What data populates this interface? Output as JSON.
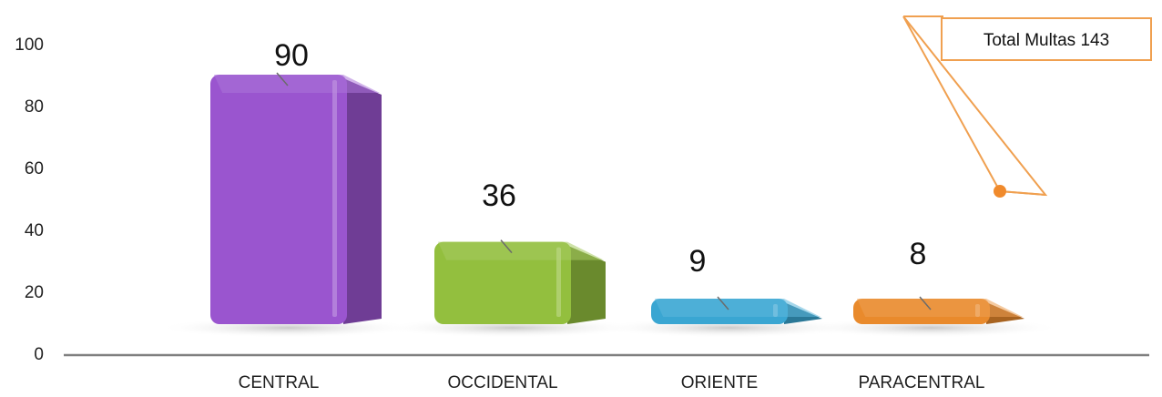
{
  "chart_data": {
    "type": "bar",
    "title": "",
    "xlabel": "",
    "ylabel": "",
    "categories": [
      "CENTRAL",
      "OCCIDENTAL",
      "ORIENTE",
      "PARACENTRAL"
    ],
    "values": [
      90,
      36,
      9,
      8
    ],
    "data_labels": [
      "90",
      "36",
      "9",
      "8"
    ],
    "ylim": [
      0,
      100
    ],
    "yticks": [
      0,
      20,
      40,
      60,
      80,
      100
    ],
    "grid": false,
    "legend": "none",
    "colors": [
      "#9a55cf",
      "#93bf3e",
      "#3aa6d2",
      "#e98a2c"
    ],
    "annotation": {
      "text": "Total Multas 143",
      "border_color": "#f0a050",
      "fill": "#ffffff"
    }
  }
}
